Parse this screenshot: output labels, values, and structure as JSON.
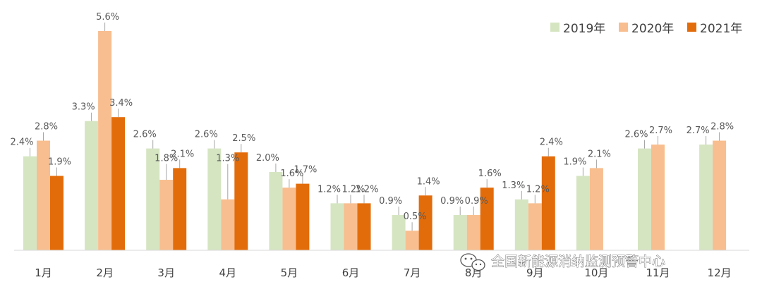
{
  "chart_data": {
    "type": "bar",
    "categories": [
      "1月",
      "2月",
      "3月",
      "4月",
      "5月",
      "6月",
      "7月",
      "8月",
      "9月",
      "10月",
      "11月",
      "12月"
    ],
    "series": [
      {
        "name": "2019年",
        "values": [
          2.4,
          3.3,
          2.6,
          2.6,
          2.0,
          1.2,
          0.9,
          0.9,
          1.3,
          1.9,
          2.6,
          2.7
        ],
        "labels": [
          "2.4%",
          "3.3%",
          "2.6%",
          "2.6%",
          "2.0%",
          "1.2%",
          "0.9%",
          "0.9%",
          "1.3%",
          "1.9%",
          "2.6%",
          "2.7%"
        ]
      },
      {
        "name": "2020年",
        "values": [
          2.8,
          5.6,
          1.8,
          1.3,
          1.6,
          1.2,
          0.5,
          0.9,
          1.2,
          2.1,
          2.7,
          2.8
        ],
        "labels": [
          "2.8%",
          "5.6%",
          "1.8%",
          "1.3%",
          "1.6%",
          "1.2%",
          "0.5%",
          "0.9%",
          "1.2%",
          "2.1%",
          "2.7%",
          "2.8%"
        ]
      },
      {
        "name": "2021年",
        "values": [
          1.9,
          3.4,
          2.1,
          2.5,
          1.7,
          1.2,
          1.4,
          1.6,
          2.4,
          null,
          null,
          null
        ],
        "labels": [
          "1.9%",
          "3.4%",
          "2.1%",
          "2.5%",
          "1.7%",
          "1.2%",
          "1.4%",
          "1.6%",
          "2.4%",
          "",
          "",
          ""
        ]
      }
    ],
    "colors": [
      "#d5e5c2",
      "#f8be8f",
      "#e36c0a"
    ],
    "ylim": [
      0,
      5.6
    ],
    "grid": false,
    "legend": "top-right"
  },
  "watermark": {
    "text": "全国新能源消纳监测预警中心",
    "icon": "wechat-icon"
  }
}
